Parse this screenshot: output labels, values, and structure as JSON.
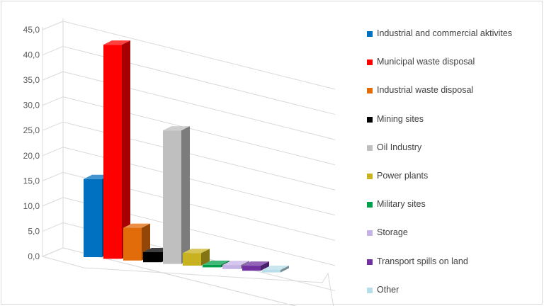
{
  "chart_data": {
    "type": "bar",
    "title": "",
    "xlabel": "",
    "ylabel": "",
    "ylim": [
      0,
      45
    ],
    "yticks": [
      0,
      5,
      10,
      15,
      20,
      25,
      30,
      35,
      40,
      45
    ],
    "ytick_labels": [
      "0,0",
      "5,0",
      "10,0",
      "15,0",
      "20,0",
      "25,0",
      "30,0",
      "35,0",
      "40,0",
      "45,0"
    ],
    "grid": true,
    "legend_position": "right",
    "categories": [
      "Industrial and commercial aktivites",
      "Municipal waste disposal",
      "Industrial waste disposal",
      "Mining sites",
      "Oil Industry",
      "Power plants",
      "Military sites",
      "Storage",
      "Transport spills on land",
      "Other"
    ],
    "values": [
      15.5,
      42.5,
      6.5,
      2.0,
      26.5,
      2.5,
      0.5,
      0.8,
      1.0,
      0.5
    ],
    "colors": [
      "#0070c0",
      "#ff0000",
      "#e36c0a",
      "#000000",
      "#bfbfbf",
      "#c9b21f",
      "#00a04a",
      "#c5b3e6",
      "#7030a0",
      "#b7dde8"
    ]
  }
}
